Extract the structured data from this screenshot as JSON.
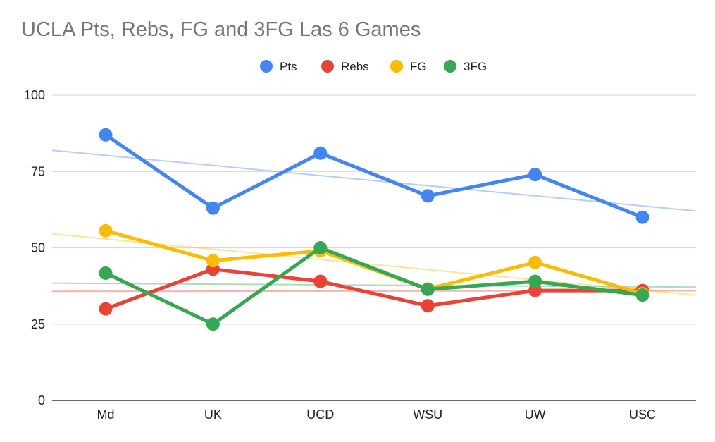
{
  "chart_data": {
    "type": "line",
    "title": "UCLA Pts, Rebs, FG and 3FG Las 6 Games",
    "categories": [
      "Md",
      "UK",
      "UCD",
      "WSU",
      "UW",
      "USC"
    ],
    "ylim": [
      0,
      100
    ],
    "yticks": [
      0,
      25,
      50,
      75,
      100
    ],
    "grid": true,
    "legend_position": "top-center",
    "trendlines": true,
    "series": [
      {
        "name": "Pts",
        "color": "#4285f4",
        "values": [
          87,
          63,
          81,
          67,
          74,
          60
        ]
      },
      {
        "name": "Rebs",
        "color": "#ea4335",
        "values": [
          30,
          43,
          39,
          31,
          36,
          36
        ]
      },
      {
        "name": "FG",
        "color": "#fbbc04",
        "values": [
          55.6,
          45.8,
          49,
          36.5,
          45.2,
          35
        ]
      },
      {
        "name": "3FG",
        "color": "#34a853",
        "values": [
          41.7,
          25,
          50,
          36.4,
          39,
          34.5
        ]
      }
    ]
  }
}
